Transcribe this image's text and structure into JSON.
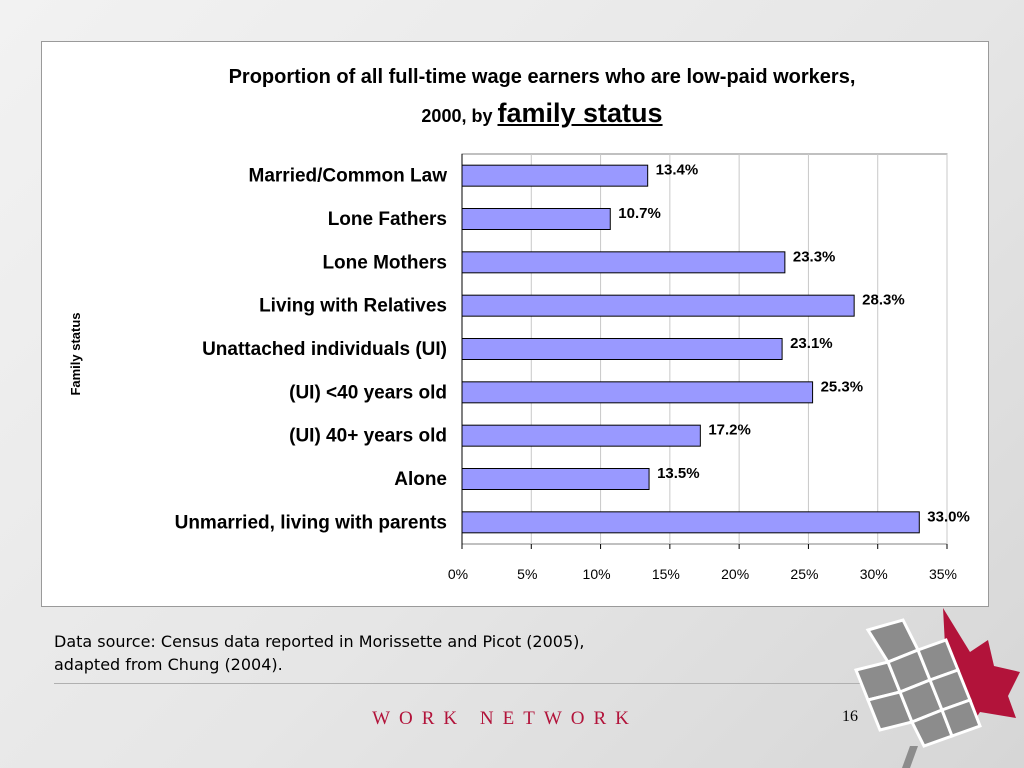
{
  "chart_data": {
    "type": "bar",
    "orientation": "horizontal",
    "title": "Proportion of all full-time wage earners who are low-paid workers,",
    "title_line2": "2000, by",
    "title_emphasis": "family status",
    "ylabel": "Family status",
    "xlabel": "",
    "categories": [
      "Married/Common Law",
      "Lone Fathers",
      "Lone Mothers",
      "Living with Relatives",
      "Unattached individuals (UI)",
      "(UI) <40 years old",
      "(UI) 40+ years old",
      "Alone",
      "Unmarried, living with parents"
    ],
    "values": [
      13.4,
      10.7,
      23.3,
      28.3,
      23.1,
      25.3,
      17.2,
      13.5,
      33.0
    ],
    "value_labels": [
      "13.4%",
      "10.7%",
      "23.3%",
      "28.3%",
      "23.1%",
      "25.3%",
      "17.2%",
      "13.5%",
      "33.0%"
    ],
    "xlim": [
      0,
      35
    ],
    "x_ticks": [
      0,
      5,
      10,
      15,
      20,
      25,
      30,
      35
    ],
    "x_tick_labels": [
      "0%",
      "5%",
      "10%",
      "15%",
      "20%",
      "25%",
      "30%",
      "35%"
    ],
    "grid": true,
    "legend": "none",
    "bar_color": "#9999ff"
  },
  "source_note": {
    "line1": "Data source: Census data reported in Morissette and Picot (2005),",
    "line2": "adapted from Chung (2004)."
  },
  "footer": {
    "brand": "WORK NETWORK",
    "slide_number": "16"
  },
  "colors": {
    "brand_red": "#b2133a",
    "logo_gray": "#808080"
  },
  "icons": [
    "maple-leaf-logo"
  ]
}
